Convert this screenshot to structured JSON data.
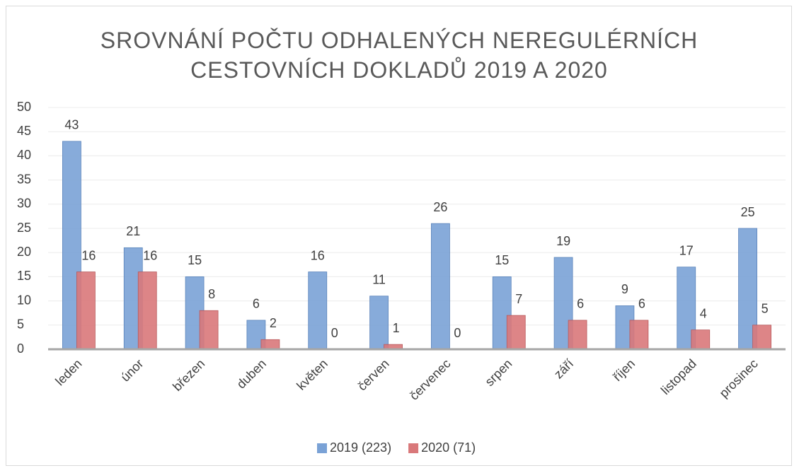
{
  "chart_data": {
    "type": "bar",
    "title": "SROVNÁNÍ POČTU ODHALENÝCH NEREGULÉRNÍCH CESTOVNÍCH DOKLADŮ 2019 A 2020",
    "categories": [
      "leden",
      "únor",
      "březen",
      "duben",
      "květen",
      "červen",
      "červenec",
      "srpen",
      "září",
      "říjen",
      "listopad",
      "prosinec"
    ],
    "series": [
      {
        "name": "2019 (223)",
        "color": "#7aa2d6",
        "values": [
          43,
          21,
          15,
          6,
          16,
          11,
          26,
          15,
          19,
          9,
          17,
          25
        ]
      },
      {
        "name": "2020 (71)",
        "color": "#d9787a",
        "values": [
          16,
          16,
          8,
          2,
          0,
          1,
          0,
          7,
          6,
          6,
          4,
          5
        ]
      }
    ],
    "ylim": [
      0,
      50
    ],
    "yticks": [
      0,
      5,
      10,
      15,
      20,
      25,
      30,
      35,
      40,
      45,
      50
    ],
    "grid": true,
    "legend": "bottom"
  }
}
